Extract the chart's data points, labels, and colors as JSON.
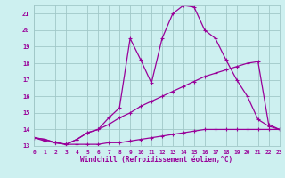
{
  "xlabel": "Windchill (Refroidissement éolien,°C)",
  "bg_color": "#cdf0f0",
  "grid_color": "#a0c8c8",
  "line_color": "#990099",
  "xmin": 0,
  "xmax": 23,
  "ymin": 13,
  "ymax": 21.5,
  "series1_x": [
    0,
    1,
    2,
    3,
    4,
    5,
    6,
    7,
    8,
    9,
    10,
    11,
    12,
    13,
    14,
    15,
    16,
    17,
    18,
    19,
    20,
    21,
    22,
    23
  ],
  "series1_y": [
    13.5,
    13.4,
    13.2,
    13.1,
    13.1,
    13.1,
    13.1,
    13.2,
    13.2,
    13.3,
    13.4,
    13.5,
    13.6,
    13.7,
    13.8,
    13.9,
    14.0,
    14.0,
    14.0,
    14.0,
    14.0,
    14.0,
    14.0,
    14.0
  ],
  "series2_x": [
    0,
    1,
    2,
    3,
    4,
    5,
    6,
    7,
    8,
    9,
    10,
    11,
    12,
    13,
    14,
    15,
    16,
    17,
    18,
    19,
    20,
    21,
    22,
    23
  ],
  "series2_y": [
    13.5,
    13.4,
    13.2,
    13.1,
    13.4,
    13.8,
    14.0,
    14.3,
    14.7,
    15.0,
    15.4,
    15.7,
    16.0,
    16.3,
    16.6,
    16.9,
    17.2,
    17.4,
    17.6,
    17.8,
    18.0,
    18.1,
    14.3,
    14.0
  ],
  "series3_x": [
    0,
    1,
    2,
    3,
    4,
    5,
    6,
    7,
    8,
    9,
    10,
    11,
    12,
    13,
    14,
    15,
    16,
    17,
    18,
    19,
    20,
    21,
    22,
    23
  ],
  "series3_y": [
    13.5,
    13.3,
    13.2,
    13.1,
    13.4,
    13.8,
    14.0,
    14.7,
    15.3,
    19.5,
    18.2,
    16.8,
    19.5,
    21.0,
    21.5,
    21.4,
    20.0,
    19.5,
    18.2,
    17.0,
    16.0,
    14.6,
    14.2,
    14.0
  ],
  "yticks": [
    13,
    14,
    15,
    16,
    17,
    18,
    19,
    20,
    21
  ],
  "xticks": [
    0,
    1,
    2,
    3,
    4,
    5,
    6,
    7,
    8,
    9,
    10,
    11,
    12,
    13,
    14,
    15,
    16,
    17,
    18,
    19,
    20,
    21,
    22,
    23
  ]
}
